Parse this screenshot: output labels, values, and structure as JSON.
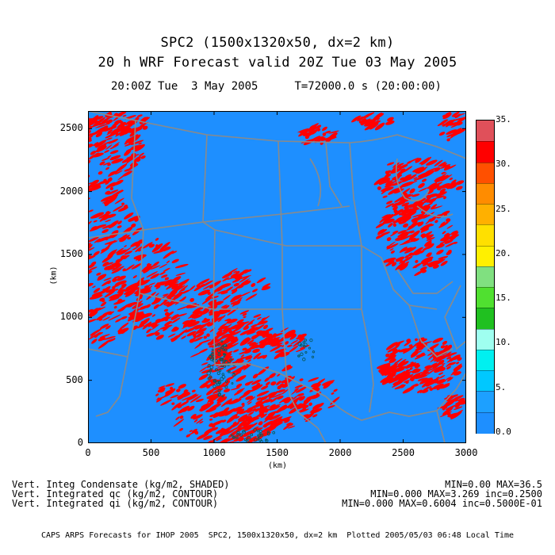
{
  "title_line1": "SPC2 (1500x1320x50, dx=2 km)",
  "title_line2": "20 h WRF Forecast valid 20Z Tue 03 May 2005",
  "time_label": "20:00Z Tue  3 May 2005",
  "t_label": "T=72000.0 s (20:00:00)",
  "axes": {
    "x_label": "(km)",
    "y_label": "(km)",
    "x_ticks": [
      "0",
      "500",
      "1000",
      "1500",
      "2000",
      "2500",
      "3000"
    ],
    "y_ticks": [
      "0",
      "500",
      "1000",
      "1500",
      "2000",
      "2500"
    ],
    "x_range": [
      0,
      3000
    ],
    "y_range": [
      0,
      2640
    ]
  },
  "colorbar": {
    "labels": [
      "35.",
      "30.",
      "25.",
      "20.",
      "15.",
      "10.",
      "5.",
      "0.0"
    ],
    "colors": [
      "#e0505a",
      "#ff0000",
      "#ff5000",
      "#ff8c00",
      "#ffb000",
      "#ffe000",
      "#fff000",
      "#80e080",
      "#50e030",
      "#20c020",
      "#9ffff0",
      "#00f0f0",
      "#00c8ff",
      "#1da0ff",
      "#1e8fff"
    ]
  },
  "fields": {
    "shaded": "Vert. Integ Condensate (kg/m2, SHADED)",
    "shaded_stats": "MIN=0.00 MAX=36.5",
    "contour_qc": "Vert. Integrated qc (kg/m2, CONTOUR)",
    "contour_qc_stats": "MIN=0.000 MAX=3.269 inc=0.2500",
    "contour_qi": "Vert. Integrated qi (kg/m2, CONTOUR)",
    "contour_qi_stats": "MIN=0.000 MAX=0.6004 inc=0.5000E-01"
  },
  "footer": "CAPS ARPS Forecasts for IHOP 2005  SPC2, 1500x1320x50, dx=2 km  Plotted 2005/05/03 06:48 Local Time",
  "map": {
    "background_color": "#1e8fff",
    "precip_color": "#ff0000",
    "border_color": "#8a8a8a",
    "contour_color": "#0a5a60"
  }
}
